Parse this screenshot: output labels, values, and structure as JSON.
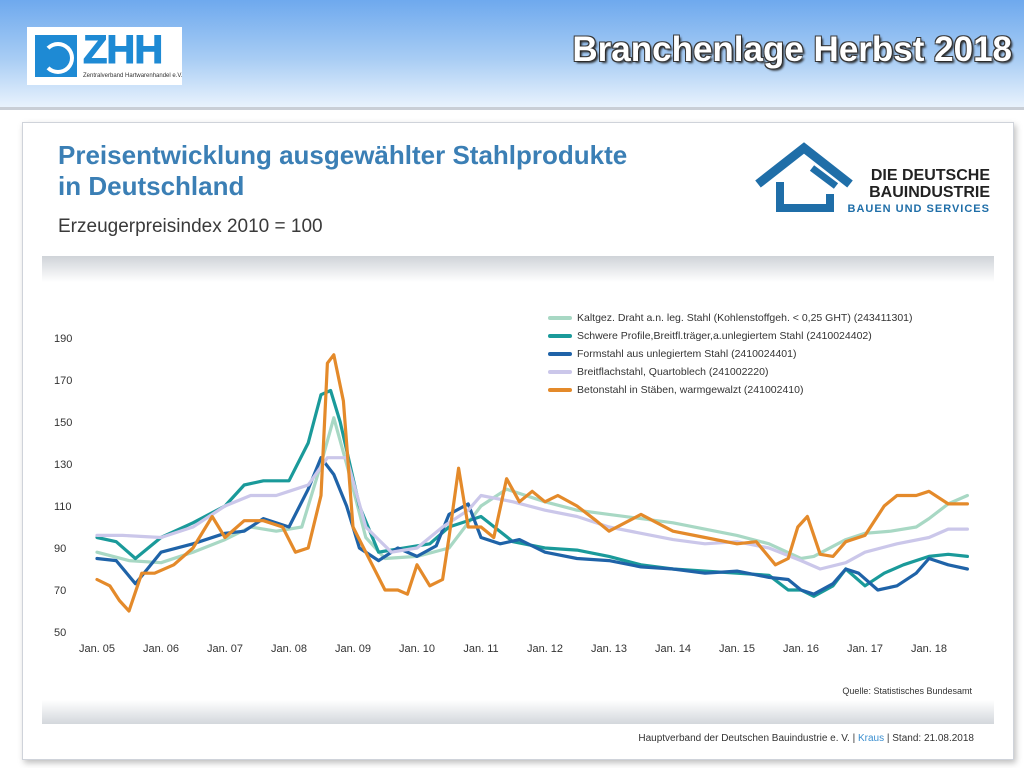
{
  "header": {
    "title": "Branchenlage Herbst 2018",
    "logo_text": "ZHH",
    "logo_subtitle": "Zentralverband Hartwarenhandel e.V."
  },
  "logos": {
    "bau_line1": "DIE DEUTSCHE",
    "bau_line2": "BAUINDUSTRIE",
    "bau_line3": "BAUEN UND SERVICES"
  },
  "colors": {
    "header_blue": "#6ea9ee",
    "title_blue": "#3b7fb5",
    "accent": "#3b8fd0"
  },
  "chart_data": {
    "type": "line",
    "title": "Preisentwicklung ausgewählter Stahlprodukte in Deutschland",
    "title_line1": "Preisentwicklung ausgewählter Stahlprodukte",
    "title_line2": "in Deutschland",
    "subtitle": "Erzeugerpreisindex 2010 = 100",
    "xlabel": "",
    "ylabel": "",
    "x_tick_labels": [
      "Jan. 05",
      "Jan. 06",
      "Jan. 07",
      "Jan. 08",
      "Jan. 09",
      "Jan. 10",
      "Jan. 11",
      "Jan. 12",
      "Jan. 13",
      "Jan. 14",
      "Jan. 15",
      "Jan. 16",
      "Jan. 17",
      "Jan. 18"
    ],
    "y_ticks": [
      50,
      70,
      90,
      110,
      130,
      150,
      170,
      190
    ],
    "ylim": [
      50,
      190
    ],
    "xlim": [
      "Jan. 05",
      "Aug. 18"
    ],
    "grid": false,
    "legend_position": "top-right",
    "x_units": "years since Jan. 2005",
    "series": [
      {
        "name": "Kaltgez. Draht a.n. leg. Stahl (Kohlenstoffgeh. < 0,25 GHT) (243411301)",
        "color": "#a8d8c4",
        "x": [
          0,
          0.5,
          1,
          1.5,
          2,
          2.4,
          2.8,
          3.2,
          3.5,
          3.7,
          3.9,
          4.2,
          4.5,
          5,
          5.5,
          6,
          6.4,
          7,
          7.5,
          8,
          9,
          10,
          10.5,
          11,
          11.2,
          11.7,
          12,
          12.4,
          12.8,
          13,
          13.3,
          13.6
        ],
        "y": [
          88,
          84,
          83,
          88,
          94,
          100,
          98,
          100,
          130,
          152,
          130,
          95,
          85,
          86,
          90,
          110,
          118,
          112,
          108,
          106,
          102,
          96,
          92,
          85,
          86,
          94,
          97,
          98,
          100,
          104,
          111,
          115
        ]
      },
      {
        "name": "Schwere Profile,Breitfl.träger,a.unlegiertem Stahl (2410024402)",
        "color": "#1a9a9a",
        "x": [
          0,
          0.3,
          0.6,
          1,
          1.5,
          2,
          2.3,
          2.6,
          3,
          3.3,
          3.5,
          3.65,
          3.8,
          4.1,
          4.4,
          4.8,
          5.2,
          5.5,
          6,
          6.5,
          7,
          7.5,
          8,
          8.5,
          9,
          9.5,
          10,
          10.5,
          10.8,
          11,
          11.2,
          11.5,
          11.7,
          12,
          12.3,
          12.6,
          13,
          13.3,
          13.6
        ],
        "y": [
          95,
          93,
          85,
          95,
          102,
          110,
          120,
          122,
          122,
          140,
          163,
          165,
          150,
          110,
          88,
          90,
          92,
          100,
          105,
          93,
          90,
          89,
          86,
          82,
          80,
          79,
          78,
          77,
          70,
          70,
          67,
          72,
          80,
          72,
          78,
          82,
          86,
          87,
          86
        ]
      },
      {
        "name": "Formstahl aus unlegiertem Stahl (2410024401)",
        "color": "#1f63a8",
        "x": [
          0,
          0.3,
          0.6,
          1,
          1.5,
          2,
          2.3,
          2.6,
          3,
          3.3,
          3.5,
          3.7,
          3.9,
          4.1,
          4.4,
          4.7,
          5,
          5.3,
          5.5,
          5.8,
          6,
          6.3,
          6.6,
          7,
          7.5,
          8,
          8.5,
          9,
          9.5,
          10,
          10.5,
          10.8,
          11,
          11.2,
          11.5,
          11.7,
          11.9,
          12.2,
          12.5,
          12.8,
          13,
          13.3,
          13.6
        ],
        "y": [
          85,
          84,
          73,
          88,
          92,
          97,
          98,
          104,
          100,
          118,
          133,
          125,
          110,
          90,
          84,
          90,
          86,
          91,
          106,
          111,
          95,
          92,
          94,
          88,
          85,
          84,
          81,
          80,
          78,
          79,
          76,
          75,
          70,
          68,
          73,
          80,
          78,
          70,
          72,
          78,
          85,
          82,
          80
        ]
      },
      {
        "name": "Breitflachstahl, Quartoblech (241002220)",
        "color": "#cbc7ea",
        "x": [
          0,
          0.4,
          1,
          1.5,
          2,
          2.4,
          2.8,
          3,
          3.3,
          3.6,
          3.9,
          4.2,
          4.6,
          5,
          5.4,
          5.8,
          6,
          6.5,
          7,
          7.5,
          8,
          8.5,
          9,
          9.5,
          10,
          10.5,
          11,
          11.3,
          11.7,
          12,
          12.5,
          13,
          13.3,
          13.6
        ],
        "y": [
          96,
          96,
          95,
          100,
          110,
          115,
          115,
          117,
          120,
          133,
          133,
          100,
          88,
          90,
          100,
          108,
          115,
          112,
          108,
          105,
          100,
          97,
          94,
          92,
          93,
          90,
          84,
          80,
          83,
          88,
          92,
          95,
          99,
          99
        ]
      },
      {
        "name": "Betonstahl in Stäben, warmgewalzt (241002410)",
        "color": "#e48a2a",
        "x": [
          0,
          0.2,
          0.35,
          0.5,
          0.7,
          0.9,
          1.2,
          1.5,
          1.8,
          2,
          2.3,
          2.6,
          2.9,
          3.1,
          3.3,
          3.5,
          3.6,
          3.7,
          3.85,
          4,
          4.3,
          4.5,
          4.7,
          4.85,
          5,
          5.2,
          5.4,
          5.5,
          5.65,
          5.8,
          6,
          6.2,
          6.4,
          6.6,
          6.8,
          7,
          7.2,
          7.5,
          7.8,
          8,
          8.5,
          9,
          9.5,
          10,
          10.3,
          10.6,
          10.8,
          10.95,
          11.1,
          11.3,
          11.5,
          11.7,
          12,
          12.3,
          12.5,
          12.8,
          13,
          13.3,
          13.6
        ],
        "y": [
          75,
          72,
          65,
          60,
          78,
          78,
          82,
          90,
          105,
          95,
          103,
          103,
          100,
          88,
          90,
          115,
          178,
          182,
          160,
          100,
          82,
          70,
          70,
          68,
          82,
          72,
          75,
          95,
          128,
          100,
          100,
          95,
          123,
          112,
          117,
          112,
          115,
          110,
          103,
          98,
          106,
          98,
          95,
          92,
          93,
          82,
          85,
          100,
          105,
          87,
          86,
          93,
          96,
          110,
          115,
          115,
          117,
          111,
          111
        ]
      }
    ],
    "source": "Quelle: Statistisches Bundesamt"
  },
  "footer": {
    "text_prefix": "Hauptverband der Deutschen Bauindustrie e. V. | ",
    "author": "Kraus",
    "text_suffix": " | Stand: 21.08.2018"
  }
}
